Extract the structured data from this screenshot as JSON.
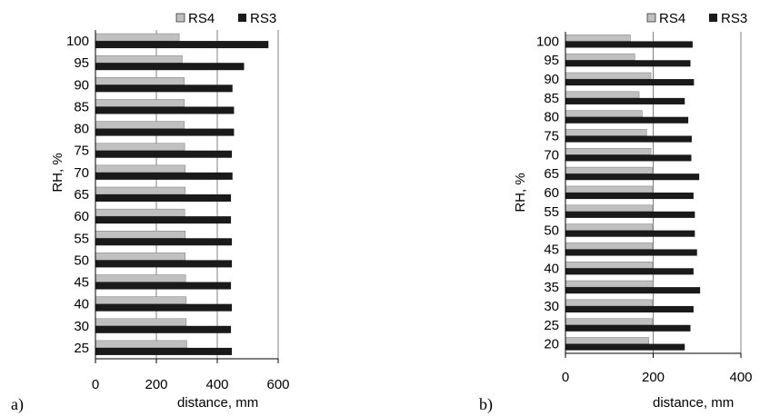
{
  "chart_data": [
    {
      "type": "bar",
      "orientation": "horizontal",
      "panel_label": "a)",
      "categories": [
        "25",
        "30",
        "40",
        "45",
        "50",
        "55",
        "60",
        "65",
        "70",
        "75",
        "80",
        "85",
        "90",
        "95",
        "100"
      ],
      "series": [
        {
          "name": "RS4",
          "color": "#c0c0c0",
          "values": [
            300,
            298,
            298,
            296,
            295,
            295,
            293,
            295,
            295,
            293,
            292,
            292,
            292,
            285,
            275
          ]
        },
        {
          "name": "RS3",
          "color": "#1a1a1a",
          "values": [
            448,
            445,
            448,
            445,
            448,
            448,
            445,
            445,
            450,
            448,
            455,
            455,
            450,
            488,
            568
          ]
        }
      ],
      "xlabel": "distance, mm",
      "ylabel": "RH, %",
      "xlim": [
        0,
        600
      ],
      "xticks": [
        0,
        200,
        400,
        600
      ],
      "legend_position": "top-right",
      "grid": "vertical"
    },
    {
      "type": "bar",
      "orientation": "horizontal",
      "panel_label": "b)",
      "categories": [
        "20",
        "25",
        "30",
        "35",
        "40",
        "45",
        "50",
        "55",
        "60",
        "65",
        "70",
        "75",
        "80",
        "85",
        "90",
        "95",
        "100"
      ],
      "series": [
        {
          "name": "RS4",
          "color": "#c0c0c0",
          "values": [
            190,
            198,
            198,
            200,
            198,
            198,
            198,
            198,
            198,
            198,
            195,
            185,
            175,
            168,
            195,
            158,
            148
          ]
        },
        {
          "name": "RS3",
          "color": "#1a1a1a",
          "values": [
            272,
            285,
            292,
            307,
            292,
            300,
            295,
            295,
            292,
            305,
            287,
            288,
            280,
            272,
            293,
            285,
            290
          ]
        }
      ],
      "xlabel": "distance, mm",
      "ylabel": "RH, %",
      "xlim": [
        0,
        400
      ],
      "xticks": [
        0,
        200,
        400
      ],
      "legend_position": "top-right",
      "grid": "vertical"
    }
  ]
}
